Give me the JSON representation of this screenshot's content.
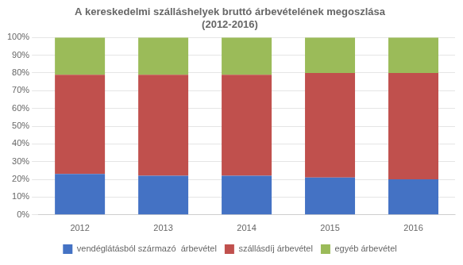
{
  "chart_data": {
    "type": "bar",
    "stacked": true,
    "title": "A kereskedelmi szálláshelyek bruttó árbevételének megoszlása\n(2012-2016)",
    "categories": [
      "2012",
      "2013",
      "2014",
      "2015",
      "2016"
    ],
    "series": [
      {
        "name": "vendéglátásból származó  árbevétel",
        "color": "#4472C4",
        "values": [
          23,
          22,
          22,
          21,
          20
        ]
      },
      {
        "name": "szállásdíj árbevétel",
        "color": "#C0504D",
        "values": [
          56,
          57,
          57,
          59,
          60
        ]
      },
      {
        "name": "egyéb árbevétel",
        "color": "#9BBB59",
        "values": [
          21,
          21,
          21,
          20,
          20
        ]
      }
    ],
    "ylim": [
      0,
      100
    ],
    "yticks": [
      {
        "value": 0,
        "label": "0%"
      },
      {
        "value": 10,
        "label": "10%"
      },
      {
        "value": 20,
        "label": "20%"
      },
      {
        "value": 30,
        "label": "30%"
      },
      {
        "value": 40,
        "label": "40%"
      },
      {
        "value": 50,
        "label": "50%"
      },
      {
        "value": 60,
        "label": "60%"
      },
      {
        "value": 70,
        "label": "70%"
      },
      {
        "value": 80,
        "label": "80%"
      },
      {
        "value": 90,
        "label": "90%"
      },
      {
        "value": 100,
        "label": "100%"
      }
    ],
    "grid": true,
    "legend": "bottom"
  }
}
